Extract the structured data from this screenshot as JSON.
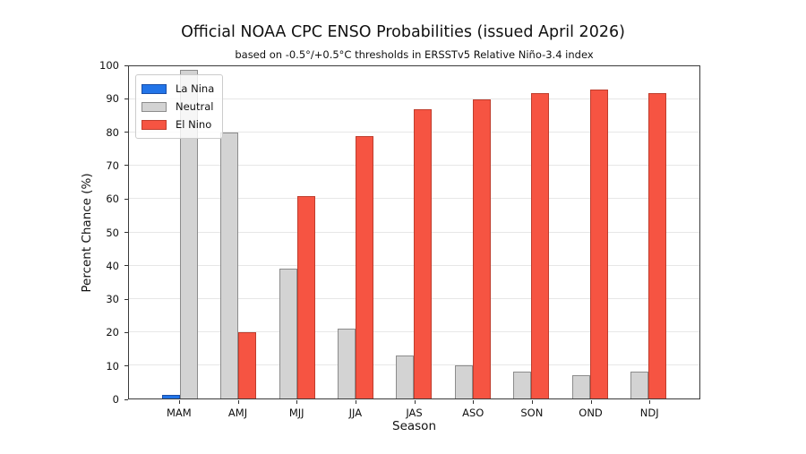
{
  "chart_data": {
    "type": "bar",
    "title": "Official NOAA CPC ENSO Probabilities (issued April 2026)",
    "subtitle": "based on -0.5°/+0.5°C thresholds in ERSSTv5 Relative Niño-3.4 index",
    "xlabel": "Season",
    "ylabel": "Percent Chance (%)",
    "ylim": [
      0,
      100
    ],
    "yticks": [
      0,
      10,
      20,
      30,
      40,
      50,
      60,
      70,
      80,
      90,
      100
    ],
    "grid": true,
    "legend_position": "upper-left",
    "categories": [
      "MAM",
      "AMJ",
      "MJJ",
      "JJA",
      "JAS",
      "ASO",
      "SON",
      "OND",
      "NDJ"
    ],
    "series": [
      {
        "name": "La Nina",
        "color": "#2274e8",
        "edge_color": "#1a4fa8",
        "values": [
          1,
          0,
          0,
          0,
          0,
          0,
          0,
          0,
          0
        ]
      },
      {
        "name": "Neutral",
        "color": "#d3d3d3",
        "edge_color": "#8c8c8c",
        "values": [
          99,
          80,
          39,
          21,
          13,
          10,
          8,
          7,
          8
        ]
      },
      {
        "name": "El Nino",
        "color": "#f65442",
        "edge_color": "#bf3d2d",
        "values": [
          0,
          20,
          61,
          79,
          87,
          90,
          92,
          93,
          92
        ]
      }
    ]
  }
}
